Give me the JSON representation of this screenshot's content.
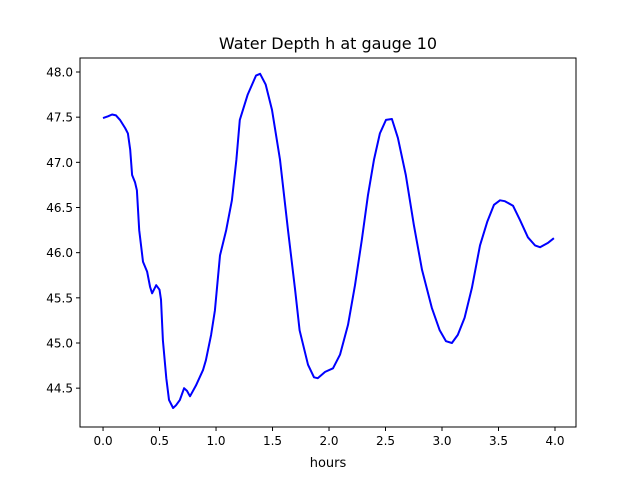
{
  "chart_data": {
    "type": "line",
    "title": "Water Depth h at gauge 10",
    "xlabel": "hours",
    "ylabel": "",
    "xlim": [
      -0.204,
      4.186
    ],
    "ylim": [
      44.07,
      48.155
    ],
    "xticks": [
      "0.0",
      "0.5",
      "1.0",
      "1.5",
      "2.0",
      "2.5",
      "3.0",
      "3.5",
      "4.0"
    ],
    "yticks": [
      "44.5",
      "45.0",
      "45.5",
      "46.0",
      "46.5",
      "47.0",
      "47.5",
      "48.0"
    ],
    "grid": false,
    "series": [
      {
        "name": "h",
        "color": "#0000ff",
        "x": [
          0,
          0.044,
          0.08,
          0.115,
          0.15,
          0.195,
          0.22,
          0.24,
          0.257,
          0.283,
          0.3,
          0.32,
          0.354,
          0.39,
          0.416,
          0.434,
          0.47,
          0.5,
          0.513,
          0.53,
          0.56,
          0.584,
          0.62,
          0.646,
          0.68,
          0.717,
          0.743,
          0.77,
          0.823,
          0.885,
          0.91,
          0.956,
          0.99,
          1.035,
          1.09,
          1.14,
          1.18,
          1.21,
          1.28,
          1.354,
          1.39,
          1.44,
          1.495,
          1.566,
          1.637,
          1.7,
          1.74,
          1.814,
          1.867,
          1.9,
          1.965,
          2.035,
          2.097,
          2.168,
          2.23,
          2.29,
          2.345,
          2.398,
          2.45,
          2.504,
          2.557,
          2.61,
          2.68,
          2.75,
          2.823,
          2.91,
          2.98,
          3.035,
          3.088,
          3.14,
          3.2,
          3.265,
          3.336,
          3.4,
          3.46,
          3.513,
          3.557,
          3.628,
          3.69,
          3.76,
          3.823,
          3.867,
          3.94,
          3.99
        ],
        "y": [
          47.49,
          47.51,
          47.53,
          47.52,
          47.47,
          47.38,
          47.32,
          47.14,
          46.86,
          46.78,
          46.69,
          46.25,
          45.9,
          45.79,
          45.62,
          45.55,
          45.64,
          45.59,
          45.48,
          45.03,
          44.61,
          44.37,
          44.28,
          44.31,
          44.37,
          44.5,
          44.47,
          44.41,
          44.53,
          44.7,
          44.81,
          45.09,
          45.36,
          45.97,
          46.25,
          46.58,
          47.03,
          47.47,
          47.75,
          47.96,
          47.98,
          47.86,
          47.58,
          47.03,
          46.25,
          45.59,
          45.14,
          44.76,
          44.62,
          44.61,
          44.68,
          44.72,
          44.87,
          45.2,
          45.64,
          46.14,
          46.64,
          47.03,
          47.32,
          47.47,
          47.48,
          47.27,
          46.86,
          46.31,
          45.81,
          45.39,
          45.14,
          45.02,
          45.0,
          45.09,
          45.28,
          45.61,
          46.08,
          46.34,
          46.53,
          46.58,
          46.57,
          46.52,
          46.36,
          46.17,
          46.08,
          46.06,
          46.11,
          46.16
        ]
      }
    ]
  }
}
